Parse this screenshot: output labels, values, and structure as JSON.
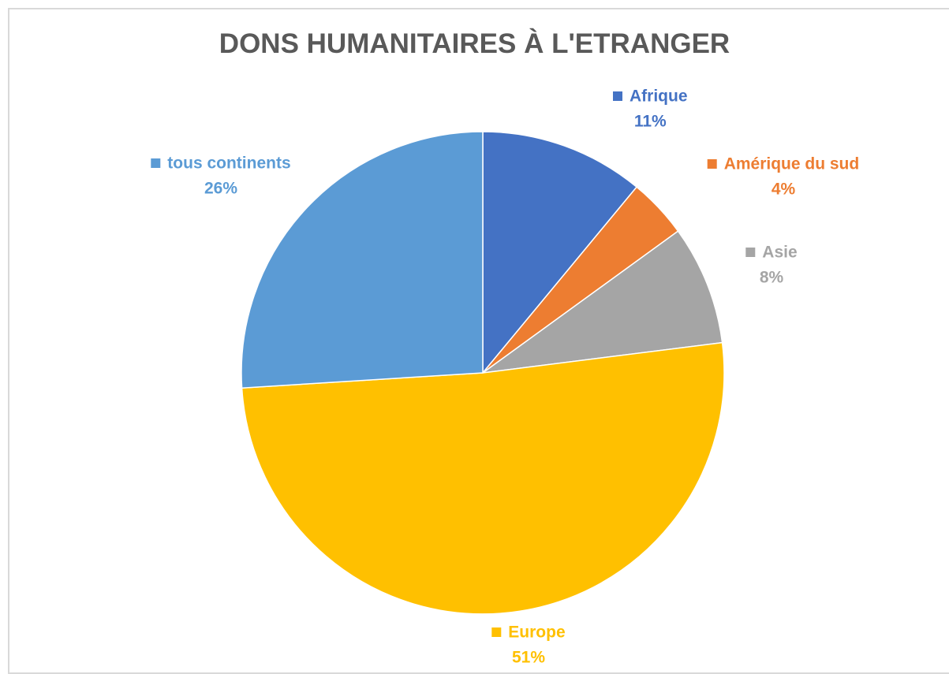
{
  "chart_data": {
    "type": "pie",
    "title": "DONS HUMANITAIRES À L'ETRANGER",
    "slices": [
      {
        "label": "Afrique",
        "value": 11,
        "value_label": "11%",
        "color": "#4472C4"
      },
      {
        "label": "Amérique du sud",
        "value": 4,
        "value_label": "4%",
        "color": "#ED7D31"
      },
      {
        "label": "Asie",
        "value": 8,
        "value_label": "8%",
        "color": "#A5A5A5"
      },
      {
        "label": "Europe",
        "value": 51,
        "value_label": "51%",
        "color": "#FFC000"
      },
      {
        "label": "tous continents",
        "value": 26,
        "value_label": "26%",
        "color": "#5B9BD5"
      }
    ],
    "start_angle_deg": 0,
    "direction": "clockwise",
    "legend": "none"
  }
}
